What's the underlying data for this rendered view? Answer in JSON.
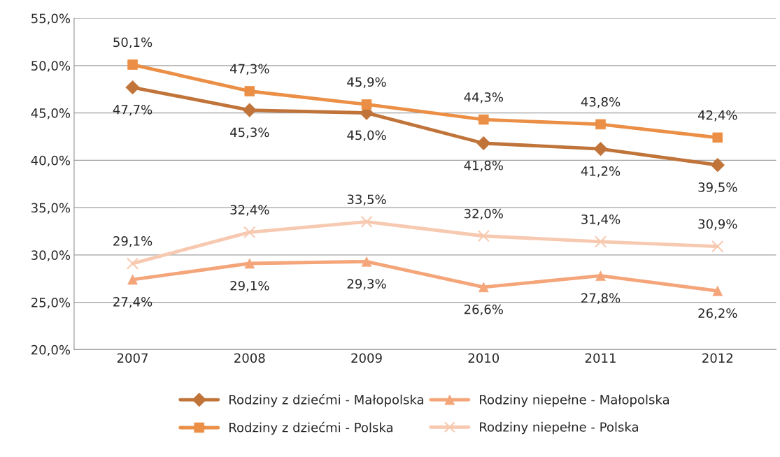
{
  "chart_data": {
    "type": "line",
    "categories": [
      "2007",
      "2008",
      "2009",
      "2010",
      "2011",
      "2012"
    ],
    "series": [
      {
        "name": "Rodziny z dziećmi - Małopolska",
        "color": "#c0743a",
        "marker": "diamond",
        "values": [
          47.7,
          45.3,
          45.0,
          41.8,
          41.2,
          39.5
        ],
        "value_labels": [
          "47,7%",
          "45,3%",
          "45,0%",
          "41,8%",
          "41,2%",
          "39,5%"
        ]
      },
      {
        "name": "Rodziny z dziećmi - Polska",
        "color": "#eb8f46",
        "marker": "square",
        "values": [
          50.1,
          47.3,
          45.9,
          44.3,
          43.8,
          42.4
        ],
        "value_labels": [
          "50,1%",
          "47,3%",
          "45,9%",
          "44,3%",
          "43,8%",
          "42,4%"
        ]
      },
      {
        "name": "Rodziny niepełne - Małopolska",
        "color": "#f4a57a",
        "marker": "triangle",
        "values": [
          27.4,
          29.1,
          29.3,
          26.6,
          27.8,
          26.2
        ],
        "value_labels": [
          "27,4%",
          "29,1%",
          "29,3%",
          "26,6%",
          "27,8%",
          "26,2%"
        ]
      },
      {
        "name": "Rodziny niepełne - Polska",
        "color": "#f7c9b0",
        "marker": "cross",
        "values": [
          29.1,
          32.4,
          33.5,
          32.0,
          31.4,
          30.9
        ],
        "value_labels": [
          "29,1%",
          "32,4%",
          "33,5%",
          "32,0%",
          "31,4%",
          "30,9%"
        ]
      }
    ],
    "ylim": [
      20,
      55
    ],
    "yticks": [
      {
        "value": 20,
        "label": "20,0%"
      },
      {
        "value": 25,
        "label": "25,0%"
      },
      {
        "value": 30,
        "label": "30,0%"
      },
      {
        "value": 35,
        "label": "35,0%"
      },
      {
        "value": 40,
        "label": "40,0%"
      },
      {
        "value": 45,
        "label": "45,0%"
      },
      {
        "value": 50,
        "label": "50,0%"
      },
      {
        "value": 55,
        "label": "55,0%"
      }
    ],
    "grid": "y",
    "legend": "bottom"
  }
}
